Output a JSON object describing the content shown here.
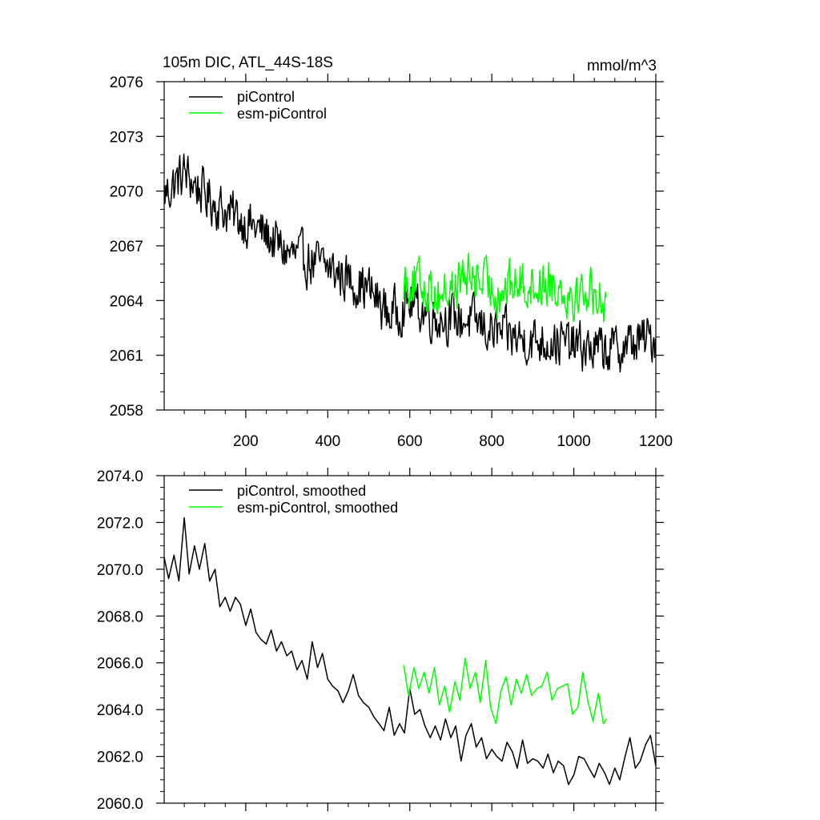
{
  "chart_data": [
    {
      "type": "line",
      "title": "105m DIC, ATL_44S-18S",
      "units": "mmol/m^3",
      "xlim": [
        1,
        1200
      ],
      "ylim": [
        2058,
        2076
      ],
      "x_ticks": [
        200,
        400,
        600,
        800,
        1000,
        1200
      ],
      "x_tick_labels": [
        "200",
        "400",
        "600",
        "800",
        "1000",
        "1200"
      ],
      "y_ticks": [
        2058,
        2061,
        2064,
        2067,
        2070,
        2073,
        2076
      ],
      "y_tick_labels": [
        "2058",
        "2061",
        "2064",
        "2067",
        "2070",
        "2073",
        "2076"
      ],
      "series": [
        {
          "name": "piControl",
          "color": "#000000",
          "x": [
            1,
            50,
            100,
            150,
            200,
            250,
            300,
            350,
            400,
            450,
            500,
            550,
            600,
            650,
            700,
            750,
            800,
            850,
            900,
            950,
            1000,
            1050,
            1100,
            1150,
            1200
          ],
          "values": [
            2069.8,
            2071.0,
            2069.8,
            2068.9,
            2068.3,
            2067.6,
            2066.6,
            2066.2,
            2065.8,
            2065.2,
            2064.6,
            2063.2,
            2063.9,
            2063.2,
            2063.0,
            2062.9,
            2062.3,
            2062.0,
            2061.8,
            2061.8,
            2061.5,
            2061.3,
            2061.3,
            2061.7,
            2062.0
          ]
        },
        {
          "name": "esm-piControl",
          "color": "#00ff00",
          "x": [
            585,
            610,
            640,
            670,
            700,
            730,
            760,
            790,
            820,
            850,
            880,
            910,
            940,
            970,
            1000,
            1030,
            1060,
            1080
          ],
          "values": [
            2065.2,
            2065.0,
            2064.8,
            2064.4,
            2064.6,
            2065.2,
            2065.3,
            2064.8,
            2064.5,
            2064.9,
            2065.0,
            2064.8,
            2065.1,
            2064.7,
            2064.3,
            2064.6,
            2064.3,
            2064.0
          ]
        }
      ]
    },
    {
      "type": "line",
      "xlim": [
        1,
        1200
      ],
      "ylim": [
        2060,
        2074
      ],
      "x_ticks": [
        200,
        400,
        600,
        800,
        1000,
        1200
      ],
      "y_ticks": [
        2060,
        2062,
        2064,
        2066,
        2068,
        2070,
        2072,
        2074
      ],
      "y_tick_labels": [
        "2060.0",
        "2062.0",
        "2064.0",
        "2066.0",
        "2068.0",
        "2070.0",
        "2072.0",
        "2074.0"
      ],
      "series": [
        {
          "name": "piControl, smoothed",
          "color": "#000000",
          "x": [
            1,
            12,
            25,
            37,
            50,
            62,
            75,
            87,
            100,
            112,
            125,
            137,
            150,
            162,
            175,
            187,
            200,
            212,
            225,
            237,
            250,
            262,
            275,
            287,
            300,
            312,
            325,
            337,
            350,
            362,
            375,
            387,
            400,
            412,
            425,
            437,
            450,
            462,
            475,
            487,
            500,
            512,
            525,
            537,
            550,
            562,
            575,
            587,
            600,
            612,
            625,
            637,
            650,
            662,
            675,
            687,
            700,
            712,
            725,
            737,
            750,
            762,
            775,
            787,
            800,
            812,
            825,
            837,
            850,
            862,
            875,
            887,
            900,
            912,
            925,
            937,
            950,
            962,
            975,
            987,
            1000,
            1012,
            1025,
            1037,
            1050,
            1062,
            1075,
            1087,
            1100,
            1112,
            1125,
            1137,
            1150,
            1162,
            1175,
            1187,
            1200
          ],
          "values": [
            2070.5,
            2069.6,
            2070.6,
            2069.5,
            2072.2,
            2069.8,
            2071.0,
            2070.0,
            2071.1,
            2069.5,
            2070.0,
            2068.4,
            2068.8,
            2068.2,
            2068.8,
            2068.5,
            2067.6,
            2068.3,
            2067.3,
            2067.0,
            2066.8,
            2067.4,
            2066.5,
            2066.9,
            2066.3,
            2066.5,
            2065.7,
            2066.1,
            2065.3,
            2066.9,
            2065.8,
            2066.4,
            2065.3,
            2065.0,
            2064.8,
            2064.3,
            2064.8,
            2065.5,
            2064.6,
            2064.3,
            2064.1,
            2063.7,
            2063.4,
            2063.1,
            2064.1,
            2062.9,
            2063.4,
            2063.0,
            2064.9,
            2063.8,
            2064.0,
            2063.3,
            2062.8,
            2063.3,
            2062.7,
            2063.6,
            2062.8,
            2063.3,
            2061.8,
            2062.9,
            2063.4,
            2062.4,
            2062.8,
            2061.9,
            2062.3,
            2062.0,
            2061.8,
            2062.6,
            2062.2,
            2061.5,
            2062.7,
            2061.7,
            2061.9,
            2061.8,
            2061.5,
            2062.1,
            2061.3,
            2061.8,
            2061.6,
            2060.8,
            2061.2,
            2062.0,
            2061.9,
            2061.5,
            2061.1,
            2061.7,
            2061.3,
            2060.8,
            2061.5,
            2061.0,
            2062.0,
            2062.8,
            2061.5,
            2061.8,
            2062.5,
            2062.9,
            2061.6
          ]
        },
        {
          "name": "esm-piControl, smoothed",
          "color": "#00ff00",
          "x": [
            585,
            597,
            610,
            622,
            635,
            647,
            660,
            672,
            685,
            697,
            710,
            722,
            735,
            747,
            760,
            772,
            785,
            797,
            810,
            822,
            835,
            847,
            860,
            872,
            885,
            897,
            910,
            922,
            935,
            947,
            960,
            972,
            985,
            997,
            1010,
            1022,
            1035,
            1047,
            1060,
            1072,
            1080
          ],
          "values": [
            2065.9,
            2064.6,
            2065.8,
            2064.9,
            2065.6,
            2064.7,
            2065.8,
            2064.2,
            2065.0,
            2063.9,
            2065.2,
            2064.4,
            2066.2,
            2064.9,
            2065.6,
            2064.3,
            2066.1,
            2064.1,
            2063.4,
            2064.8,
            2065.4,
            2064.2,
            2065.3,
            2064.7,
            2065.5,
            2064.6,
            2064.9,
            2065.0,
            2065.6,
            2064.4,
            2064.9,
            2065.0,
            2065.1,
            2063.8,
            2064.1,
            2065.6,
            2064.3,
            2063.5,
            2064.7,
            2063.4,
            2063.6
          ]
        }
      ]
    }
  ]
}
